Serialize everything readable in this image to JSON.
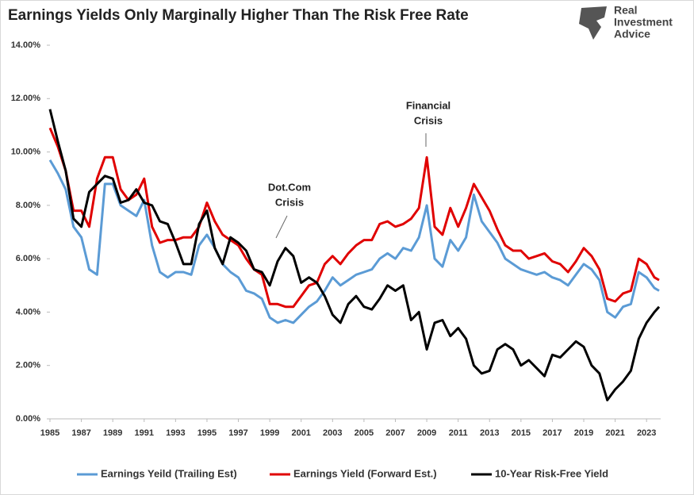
{
  "chart_data": {
    "type": "line",
    "title": "Earnings Yields Only Marginally Higher Than The Risk Free Rate",
    "brand": [
      "Real",
      "Investment",
      "Advice"
    ],
    "x": [
      1985,
      1985.5,
      1986,
      1986.5,
      1987,
      1987.5,
      1988,
      1988.5,
      1989,
      1989.5,
      1990,
      1990.5,
      1991,
      1991.5,
      1992,
      1992.5,
      1993,
      1993.5,
      1994,
      1994.5,
      1995,
      1995.5,
      1996,
      1996.5,
      1997,
      1997.5,
      1998,
      1998.5,
      1999,
      1999.5,
      2000,
      2000.5,
      2001,
      2001.5,
      2002,
      2002.5,
      2003,
      2003.5,
      2004,
      2004.5,
      2005,
      2005.5,
      2006,
      2006.5,
      2007,
      2007.5,
      2008,
      2008.5,
      2009,
      2009.5,
      2010,
      2010.5,
      2011,
      2011.5,
      2012,
      2012.5,
      2013,
      2013.5,
      2014,
      2014.5,
      2015,
      2015.5,
      2016,
      2016.5,
      2017,
      2017.5,
      2018,
      2018.5,
      2019,
      2019.5,
      2020,
      2020.5,
      2021,
      2021.5,
      2022,
      2022.5,
      2023,
      2023.5,
      2023.8
    ],
    "series": [
      {
        "name": "Earnings Yeild (Trailing Est)",
        "color": "#5b9bd5",
        "values": [
          9.7,
          9.2,
          8.6,
          7.2,
          6.8,
          5.6,
          5.4,
          8.8,
          8.8,
          8.0,
          7.8,
          7.6,
          8.2,
          6.5,
          5.5,
          5.3,
          5.5,
          5.5,
          5.4,
          6.5,
          6.9,
          6.4,
          5.8,
          5.5,
          5.3,
          4.8,
          4.7,
          4.5,
          3.8,
          3.6,
          3.7,
          3.6,
          3.9,
          4.2,
          4.4,
          4.8,
          5.3,
          5.0,
          5.2,
          5.4,
          5.5,
          5.6,
          6.0,
          6.2,
          6.0,
          6.4,
          6.3,
          6.8,
          8.0,
          6.0,
          5.7,
          6.7,
          6.3,
          6.8,
          8.4,
          7.4,
          7.0,
          6.6,
          6.0,
          5.8,
          5.6,
          5.5,
          5.4,
          5.5,
          5.3,
          5.2,
          5.0,
          5.4,
          5.8,
          5.6,
          5.2,
          4.0,
          3.8,
          4.2,
          4.3,
          5.5,
          5.3,
          4.9,
          4.8
        ]
      },
      {
        "name": "Earnings Yield (Forward Est.)",
        "color": "#e00000",
        "values": [
          10.9,
          10.2,
          9.3,
          7.8,
          7.8,
          7.2,
          9.0,
          9.8,
          9.8,
          8.6,
          8.2,
          8.4,
          9.0,
          7.2,
          6.6,
          6.7,
          6.7,
          6.8,
          6.8,
          7.2,
          8.1,
          7.4,
          6.9,
          6.7,
          6.5,
          6.0,
          5.6,
          5.4,
          4.3,
          4.3,
          4.2,
          4.2,
          4.6,
          5.0,
          5.1,
          5.8,
          6.1,
          5.8,
          6.2,
          6.5,
          6.7,
          6.7,
          7.3,
          7.4,
          7.2,
          7.3,
          7.5,
          7.9,
          9.8,
          7.2,
          6.9,
          7.9,
          7.2,
          7.9,
          8.8,
          8.3,
          7.8,
          7.1,
          6.5,
          6.3,
          6.3,
          6.0,
          6.1,
          6.2,
          5.9,
          5.8,
          5.5,
          5.9,
          6.4,
          6.1,
          5.6,
          4.5,
          4.4,
          4.7,
          4.8,
          6.0,
          5.8,
          5.3,
          5.2
        ]
      },
      {
        "name": "10-Year Risk-Free Yield",
        "color": "#000000",
        "values": [
          11.6,
          10.4,
          9.3,
          7.5,
          7.2,
          8.5,
          8.8,
          9.1,
          9.0,
          8.1,
          8.2,
          8.6,
          8.1,
          8.0,
          7.4,
          7.3,
          6.6,
          5.8,
          5.8,
          7.3,
          7.8,
          6.4,
          5.8,
          6.8,
          6.6,
          6.3,
          5.6,
          5.5,
          5.0,
          5.9,
          6.4,
          6.1,
          5.1,
          5.3,
          5.1,
          4.6,
          3.9,
          3.6,
          4.3,
          4.6,
          4.2,
          4.1,
          4.5,
          5.0,
          4.8,
          5.0,
          3.7,
          4.0,
          2.6,
          3.6,
          3.7,
          3.1,
          3.4,
          3.0,
          2.0,
          1.7,
          1.8,
          2.6,
          2.8,
          2.6,
          2.0,
          2.2,
          1.9,
          1.6,
          2.4,
          2.3,
          2.6,
          2.9,
          2.7,
          2.0,
          1.7,
          0.7,
          1.1,
          1.4,
          1.8,
          3.0,
          3.6,
          4.0,
          4.2
        ]
      }
    ],
    "xlim": [
      1985,
      2023.9
    ],
    "xticks": [
      1985,
      1987,
      1989,
      1991,
      1993,
      1995,
      1997,
      1999,
      2001,
      2003,
      2005,
      2007,
      2009,
      2011,
      2013,
      2015,
      2017,
      2019,
      2021,
      2023
    ],
    "ylim": [
      0,
      14
    ],
    "yticks": [
      {
        "value": 0,
        "label": "0.00%"
      },
      {
        "value": 2,
        "label": "2.00%"
      },
      {
        "value": 4,
        "label": "4.00%"
      },
      {
        "value": 6,
        "label": "6.00%"
      },
      {
        "value": 8,
        "label": "8.00%"
      },
      {
        "value": 10,
        "label": "10.00%"
      },
      {
        "value": 12,
        "label": "12.00%"
      },
      {
        "value": 14,
        "label": "14.00%"
      }
    ],
    "annotations": [
      [
        "Dot.Com",
        "Crisis"
      ],
      [
        "Financial",
        "Crisis"
      ]
    ],
    "legend": "bottom"
  }
}
